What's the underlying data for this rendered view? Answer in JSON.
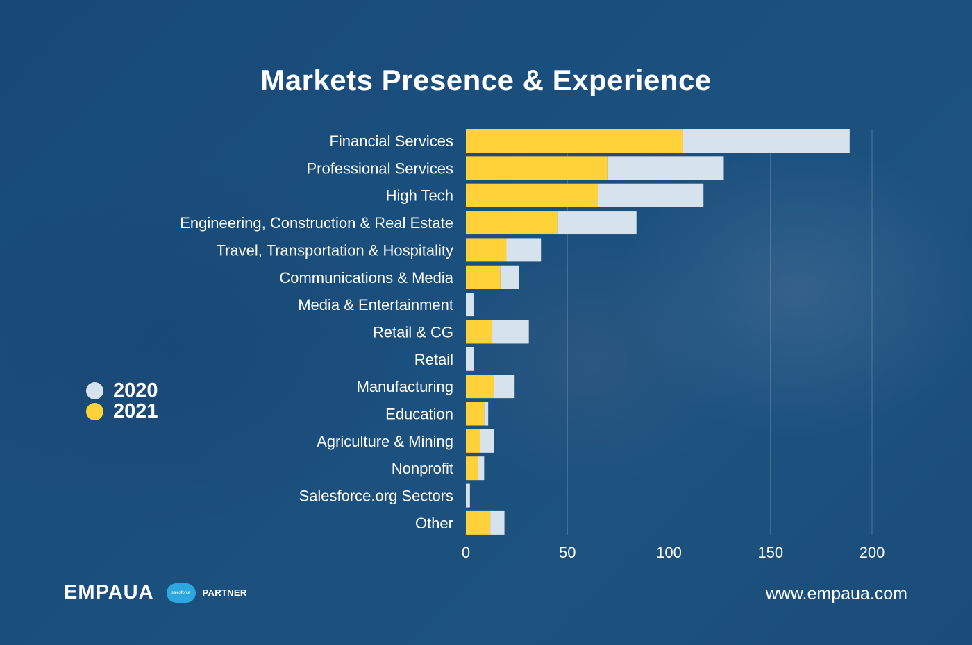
{
  "title": "Markets Presence & Experience",
  "legend": [
    {
      "label": "2020",
      "color": "#d6e2ec"
    },
    {
      "label": "2021",
      "color": "#ffd23a"
    }
  ],
  "footer": {
    "brand": "EMPAUA",
    "partner_badge": "salesforce",
    "partner_label": "PARTNER",
    "website": "www.empaua.com"
  },
  "chart_data": {
    "type": "bar",
    "orientation": "horizontal",
    "stacked": true,
    "categories": [
      "Financial Services",
      "Professional Services",
      "High Tech",
      "Engineering, Construction & Real Estate",
      "Travel, Transportation & Hospitality",
      "Communications & Media",
      "Media & Entertainment",
      "Retail & CG",
      "Retail",
      "Manufacturing",
      "Education",
      "Agriculture & Mining",
      "Nonprofit",
      "Salesforce.org Sectors",
      "Other"
    ],
    "series": [
      {
        "name": "2021",
        "color": "#ffd23a",
        "values": [
          107,
          70,
          65,
          45,
          20,
          17,
          0,
          13,
          0,
          14,
          9,
          7,
          6,
          0,
          12
        ]
      },
      {
        "name": "2020",
        "color": "#d6e2ec",
        "values": [
          82,
          57,
          52,
          39,
          17,
          9,
          4,
          18,
          4,
          10,
          2,
          7,
          3,
          2,
          7
        ]
      }
    ],
    "x_ticks": [
      0,
      50,
      100,
      150,
      200
    ],
    "xlim": [
      0,
      200
    ],
    "grid": true,
    "legend_position": "left"
  }
}
